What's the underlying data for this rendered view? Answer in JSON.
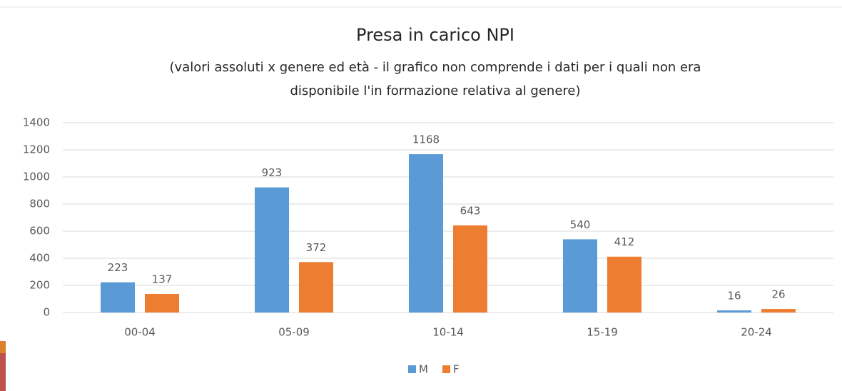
{
  "chart_data": {
    "type": "bar",
    "title": "Presa in carico NPI",
    "subtitle": [
      "(valori assoluti x genere ed età - il grafico non comprende i dati per i quali non era",
      "disponibile l'in formazione relativa al genere)"
    ],
    "categories": [
      "00-04",
      "05-09",
      "10-14",
      "15-19",
      "20-24"
    ],
    "series": [
      {
        "name": "M",
        "color": "#5b9bd5",
        "values": [
          223,
          923,
          1168,
          540,
          16
        ]
      },
      {
        "name": "F",
        "color": "#ed7d31",
        "values": [
          137,
          372,
          643,
          412,
          26
        ]
      }
    ],
    "ylim": [
      0,
      1400
    ],
    "yticks": [
      0,
      200,
      400,
      600,
      800,
      1000,
      1200,
      1400
    ],
    "grid": true,
    "legend": "bottom"
  }
}
